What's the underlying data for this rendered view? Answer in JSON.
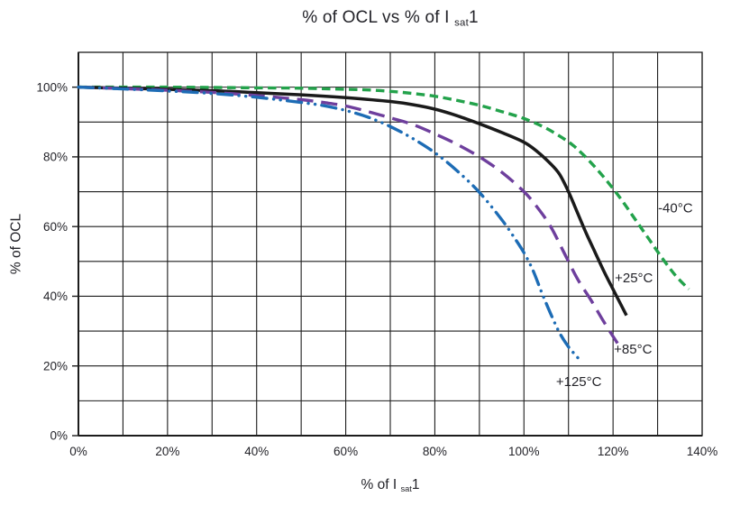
{
  "page": {
    "background": "#ffffff",
    "text_color": "#232329"
  },
  "chart_data": {
    "type": "line",
    "title": {
      "main": "% of OCL vs % of I ",
      "sub": "sat",
      "tail": "1"
    },
    "xlabel": {
      "main": "% of I ",
      "sub": "sat",
      "tail": "1"
    },
    "ylabel": "% of OCL",
    "xlim": [
      0,
      140
    ],
    "ylim": [
      0,
      110
    ],
    "grid": {
      "on": true,
      "step": 10,
      "color": "#1c1c1c"
    },
    "frame_color": "#1c1c1c",
    "legend_position": "inline-curve-labels",
    "xticks": [
      {
        "v": 0,
        "label": "0%"
      },
      {
        "v": 20,
        "label": "20%"
      },
      {
        "v": 40,
        "label": "40%"
      },
      {
        "v": 60,
        "label": "60%"
      },
      {
        "v": 80,
        "label": "80%"
      },
      {
        "v": 100,
        "label": "100%"
      },
      {
        "v": 120,
        "label": "120%"
      },
      {
        "v": 140,
        "label": "140%"
      }
    ],
    "yticks": [
      {
        "v": 0,
        "label": "0%"
      },
      {
        "v": 20,
        "label": "20%"
      },
      {
        "v": 40,
        "label": "40%"
      },
      {
        "v": 60,
        "label": "60%"
      },
      {
        "v": 80,
        "label": "80%"
      },
      {
        "v": 100,
        "label": "100%"
      }
    ],
    "series": [
      {
        "id": "minus40c",
        "name": "-40°C",
        "color": "#23a24b",
        "style": "short-dash",
        "width": 3.4,
        "points": [
          [
            0,
            100
          ],
          [
            20,
            100
          ],
          [
            40,
            99.8
          ],
          [
            50,
            99.7
          ],
          [
            60,
            99.4
          ],
          [
            65,
            99.2
          ],
          [
            70,
            98.8
          ],
          [
            75,
            98.2
          ],
          [
            80,
            97.4
          ],
          [
            85,
            96.2
          ],
          [
            90,
            94.8
          ],
          [
            95,
            93
          ],
          [
            100,
            91
          ],
          [
            105,
            88.2
          ],
          [
            110,
            84.3
          ],
          [
            113,
            81
          ],
          [
            116,
            77
          ],
          [
            119,
            72.5
          ],
          [
            122,
            67.5
          ],
          [
            125,
            62
          ],
          [
            128,
            56.5
          ],
          [
            131,
            51
          ],
          [
            134,
            46
          ],
          [
            137,
            42
          ]
        ]
      },
      {
        "id": "plus25c",
        "name": "+25°C",
        "color": "#1a1a1a",
        "style": "solid",
        "width": 3.5,
        "points": [
          [
            0,
            100
          ],
          [
            10,
            99.7
          ],
          [
            20,
            99.4
          ],
          [
            30,
            99
          ],
          [
            40,
            98.4
          ],
          [
            50,
            97.8
          ],
          [
            60,
            97
          ],
          [
            70,
            95.9
          ],
          [
            75,
            95
          ],
          [
            80,
            93.7
          ],
          [
            85,
            91.8
          ],
          [
            90,
            89.5
          ],
          [
            95,
            87
          ],
          [
            100,
            84.2
          ],
          [
            103,
            81.5
          ],
          [
            106,
            78
          ],
          [
            108,
            75
          ],
          [
            110,
            70
          ],
          [
            112,
            64
          ],
          [
            114,
            58
          ],
          [
            116,
            52.5
          ],
          [
            118,
            47
          ],
          [
            120,
            42
          ],
          [
            123,
            34.5
          ]
        ]
      },
      {
        "id": "plus85c",
        "name": "+85°C",
        "color": "#6e3f9d",
        "style": "long-dash",
        "width": 3.4,
        "points": [
          [
            0,
            100
          ],
          [
            10,
            99.6
          ],
          [
            20,
            99.1
          ],
          [
            30,
            98.5
          ],
          [
            40,
            97.6
          ],
          [
            50,
            96.4
          ],
          [
            55,
            95.6
          ],
          [
            60,
            94.6
          ],
          [
            65,
            93
          ],
          [
            70,
            91.2
          ],
          [
            75,
            89.3
          ],
          [
            80,
            86.6
          ],
          [
            85,
            83.6
          ],
          [
            90,
            80
          ],
          [
            95,
            75.6
          ],
          [
            100,
            70
          ],
          [
            103,
            65.5
          ],
          [
            106,
            60
          ],
          [
            109,
            52.5
          ],
          [
            112,
            45
          ],
          [
            115,
            39
          ],
          [
            118,
            32.5
          ],
          [
            121,
            26.5
          ]
        ]
      },
      {
        "id": "plus125c",
        "name": "+125°C",
        "color": "#1d6cb5",
        "style": "dash-dot-dot",
        "width": 3.4,
        "points": [
          [
            0,
            100
          ],
          [
            10,
            99.5
          ],
          [
            20,
            98.9
          ],
          [
            30,
            98.2
          ],
          [
            40,
            97.1
          ],
          [
            50,
            95.6
          ],
          [
            55,
            94.7
          ],
          [
            60,
            93.3
          ],
          [
            65,
            91.4
          ],
          [
            70,
            88.7
          ],
          [
            75,
            85.3
          ],
          [
            80,
            81.2
          ],
          [
            85,
            76
          ],
          [
            90,
            69.8
          ],
          [
            95,
            62
          ],
          [
            98,
            56.5
          ],
          [
            100,
            52.5
          ],
          [
            102,
            47.5
          ],
          [
            104,
            41
          ],
          [
            106,
            35
          ],
          [
            108,
            29.5
          ],
          [
            110,
            25.5
          ],
          [
            112,
            22.5
          ],
          [
            113,
            21
          ]
        ]
      }
    ],
    "labels": [
      {
        "id": "minus40c",
        "text": "-40°C",
        "x": 130.1,
        "y": 64
      },
      {
        "id": "plus25c",
        "text": "+25°C",
        "x": 120.4,
        "y": 44
      },
      {
        "id": "plus85c",
        "text": "+85°C",
        "x": 120.2,
        "y": 23.6
      },
      {
        "id": "plus125c",
        "text": "+125°C",
        "x": 107.2,
        "y": 14.2
      }
    ]
  }
}
